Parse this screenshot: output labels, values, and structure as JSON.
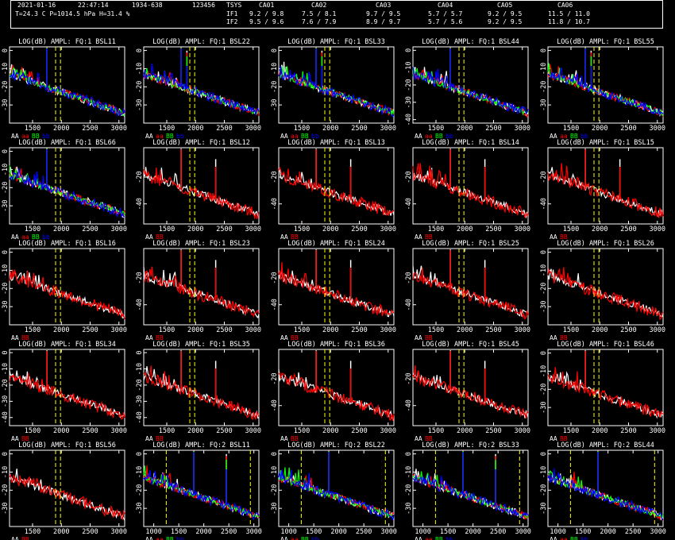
{
  "header": {
    "date": "2021-01-16",
    "time": "22:47:14",
    "range": "1934-638",
    "id": "123456",
    "tsys_label": "TSYS",
    "env": "T=24.3 C P=1014.5 hPa H=31.4 %",
    "if1_label": "IF1",
    "if2_label": "IF2",
    "antennas": [
      "CA01",
      "CA02",
      "CA03",
      "CA04",
      "CA05",
      "CA06"
    ],
    "if1": [
      "9.2 / 9.8",
      "7.5 / 8.1",
      "9.7 / 9.5",
      "5.7 / 5.7",
      "9.2 / 9.5",
      "11.5 / 11.0"
    ],
    "if2": [
      "9.5 / 9.6",
      "7.6 / 7.9",
      "8.9 / 9.7",
      "5.7 / 5.6",
      "9.2 / 9.5",
      "11.8 / 10.7"
    ]
  },
  "colors": {
    "AA": "#ffffff",
    "aa": "#ff0000",
    "BB": "#00ff00",
    "bb": "#0000ff",
    "BB_single": "#ff0000",
    "marker": "#ffff00"
  },
  "chart_data": [
    {
      "type": "line",
      "title": "LOG(dB) AMPL: FQ:1 BSL11",
      "x_ticks": [
        1500,
        2000,
        2500,
        3000
      ],
      "y_ticks": [
        0,
        -10,
        -20,
        -30
      ],
      "ylim": [
        -40,
        2
      ],
      "xlim": [
        1100,
        3100
      ],
      "legend": [
        "AA",
        "aa",
        "BB",
        "bb"
      ],
      "markers": [
        1900,
        1985
      ],
      "spikes": [
        1750
      ]
    },
    {
      "type": "line",
      "title": "LOG(dB) AMPL: FQ:1 BSL22",
      "x_ticks": [
        1500,
        2000,
        2500,
        3000
      ],
      "y_ticks": [
        0,
        -10,
        -20,
        -30
      ],
      "ylim": [
        -40,
        2
      ],
      "xlim": [
        1100,
        3100
      ],
      "legend": [
        "AA",
        "aa",
        "BB",
        "bb"
      ],
      "markers": [
        1900,
        1985
      ],
      "spikes": [
        1750,
        1850
      ]
    },
    {
      "type": "line",
      "title": "LOG(dB) AMPL: FQ:1 BSL33",
      "x_ticks": [
        1500,
        2000,
        2500,
        3000
      ],
      "y_ticks": [
        0,
        -10,
        -20,
        -30
      ],
      "ylim": [
        -40,
        2
      ],
      "xlim": [
        1100,
        3100
      ],
      "legend": [
        "AA",
        "aa",
        "BB",
        "bb"
      ],
      "markers": [
        1900,
        1985
      ],
      "spikes": [
        1750,
        1850
      ]
    },
    {
      "type": "line",
      "title": "LOG(dB) AMPL: FQ:1 BSL44",
      "x_ticks": [
        1500,
        2000,
        2500,
        3000
      ],
      "y_ticks": [
        0,
        -10,
        -20,
        -30,
        -40
      ],
      "ylim": [
        -42,
        2
      ],
      "xlim": [
        1100,
        3100
      ],
      "legend": [
        "AA",
        "aa",
        "BB",
        "bb"
      ],
      "markers": [
        1900,
        1985
      ],
      "spikes": [
        1750
      ]
    },
    {
      "type": "line",
      "title": "LOG(dB) AMPL: FQ:1 BSL55",
      "x_ticks": [
        1500,
        2000,
        2500,
        3000
      ],
      "y_ticks": [
        0,
        -10,
        -20,
        -30
      ],
      "ylim": [
        -40,
        2
      ],
      "xlim": [
        1100,
        3100
      ],
      "legend": [
        "AA",
        "aa",
        "BB",
        "bb"
      ],
      "markers": [
        1900,
        1985
      ],
      "spikes": [
        1750,
        1850
      ]
    },
    {
      "type": "line",
      "title": "LOG(dB) AMPL: FQ:1 BSL66",
      "x_ticks": [
        1500,
        2000,
        2500,
        3000
      ],
      "y_ticks": [
        0,
        -10,
        -20,
        -30
      ],
      "ylim": [
        -40,
        2
      ],
      "xlim": [
        1100,
        3100
      ],
      "legend": [
        "AA",
        "aa",
        "BB",
        "bb"
      ],
      "markers": [
        1900,
        1985
      ],
      "spikes": [
        1750
      ]
    },
    {
      "type": "line",
      "title": "LOG(dB) AMPL: FQ:1 BSL12",
      "x_ticks": [
        1500,
        2000,
        2500,
        3000
      ],
      "y_ticks": [
        -20,
        -40
      ],
      "ylim": [
        -55,
        2
      ],
      "xlim": [
        1100,
        3100
      ],
      "legend": [
        "AA",
        "BB"
      ],
      "markers": [
        1900,
        1985
      ],
      "spikes": [
        1750,
        2350
      ]
    },
    {
      "type": "line",
      "title": "LOG(dB) AMPL: FQ:1 BSL13",
      "x_ticks": [
        1500,
        2000,
        2500,
        3000
      ],
      "y_ticks": [
        -20,
        -40
      ],
      "ylim": [
        -55,
        2
      ],
      "xlim": [
        1100,
        3100
      ],
      "legend": [
        "AA",
        "BB"
      ],
      "markers": [
        1900,
        1985
      ],
      "spikes": [
        1750,
        2350
      ]
    },
    {
      "type": "line",
      "title": "LOG(dB) AMPL: FQ:1 BSL14",
      "x_ticks": [
        1500,
        2000,
        2500,
        3000
      ],
      "y_ticks": [
        -20,
        -40
      ],
      "ylim": [
        -55,
        2
      ],
      "xlim": [
        1100,
        3100
      ],
      "legend": [
        "AA",
        "BB"
      ],
      "markers": [
        1900,
        1985
      ],
      "spikes": [
        1750,
        2350
      ]
    },
    {
      "type": "line",
      "title": "LOG(dB) AMPL: FQ:1 BSL15",
      "x_ticks": [
        1500,
        2000,
        2500,
        3000
      ],
      "y_ticks": [
        -20,
        -40
      ],
      "ylim": [
        -55,
        2
      ],
      "xlim": [
        1100,
        3100
      ],
      "legend": [
        "AA",
        "BB"
      ],
      "markers": [
        1900,
        1985
      ],
      "spikes": [
        1750,
        2350
      ]
    },
    {
      "type": "line",
      "title": "LOG(dB) AMPL: FQ:1 BSL16",
      "x_ticks": [
        1500,
        2000,
        2500,
        3000
      ],
      "y_ticks": [
        0,
        -10,
        -20,
        -30
      ],
      "ylim": [
        -40,
        2
      ],
      "xlim": [
        1100,
        3100
      ],
      "legend": [
        "AA",
        "BB"
      ],
      "markers": [
        1900,
        1985
      ],
      "spikes": []
    },
    {
      "type": "line",
      "title": "LOG(dB) AMPL: FQ:1 BSL23",
      "x_ticks": [
        1500,
        2000,
        2500,
        3000
      ],
      "y_ticks": [
        -20,
        -40
      ],
      "ylim": [
        -55,
        2
      ],
      "xlim": [
        1100,
        3100
      ],
      "legend": [
        "AA",
        "BB"
      ],
      "markers": [
        1900,
        1985
      ],
      "spikes": [
        1750,
        2350
      ]
    },
    {
      "type": "line",
      "title": "LOG(dB) AMPL: FQ:1 BSL24",
      "x_ticks": [
        1500,
        2000,
        2500,
        3000
      ],
      "y_ticks": [
        -20,
        -40
      ],
      "ylim": [
        -55,
        2
      ],
      "xlim": [
        1100,
        3100
      ],
      "legend": [
        "AA",
        "BB"
      ],
      "markers": [
        1900,
        1985
      ],
      "spikes": [
        1750,
        2350
      ]
    },
    {
      "type": "line",
      "title": "LOG(dB) AMPL: FQ:1 BSL25",
      "x_ticks": [
        1500,
        2000,
        2500,
        3000
      ],
      "y_ticks": [
        -20,
        -40
      ],
      "ylim": [
        -55,
        2
      ],
      "xlim": [
        1100,
        3100
      ],
      "legend": [
        "AA",
        "BB"
      ],
      "markers": [
        1900,
        1985
      ],
      "spikes": [
        1750,
        2350
      ]
    },
    {
      "type": "line",
      "title": "LOG(dB) AMPL: FQ:1 BSL26",
      "x_ticks": [
        1500,
        2000,
        2500,
        3000
      ],
      "y_ticks": [
        0,
        -10,
        -20,
        -30
      ],
      "ylim": [
        -40,
        2
      ],
      "xlim": [
        1100,
        3100
      ],
      "legend": [
        "AA",
        "BB"
      ],
      "markers": [
        1900,
        1985
      ],
      "spikes": []
    },
    {
      "type": "line",
      "title": "LOG(dB) AMPL: FQ:1 BSL34",
      "x_ticks": [
        1500,
        2000,
        2500,
        3000
      ],
      "y_ticks": [
        0,
        -10,
        -20,
        -30,
        -40
      ],
      "ylim": [
        -45,
        2
      ],
      "xlim": [
        1100,
        3100
      ],
      "legend": [
        "AA",
        "BB"
      ],
      "markers": [
        1900,
        1985
      ],
      "spikes": [
        1750
      ]
    },
    {
      "type": "line",
      "title": "LOG(dB) AMPL: FQ:1 BSL35",
      "x_ticks": [
        1500,
        2000,
        2500,
        3000
      ],
      "y_ticks": [
        0,
        -10,
        -20,
        -30,
        -40
      ],
      "ylim": [
        -45,
        2
      ],
      "xlim": [
        1100,
        3100
      ],
      "legend": [
        "AA",
        "BB"
      ],
      "markers": [
        1900,
        1985
      ],
      "spikes": [
        1750,
        2350
      ]
    },
    {
      "type": "line",
      "title": "LOG(dB) AMPL: FQ:1 BSL36",
      "x_ticks": [
        1500,
        2000,
        2500,
        3000
      ],
      "y_ticks": [
        -20,
        -40
      ],
      "ylim": [
        -55,
        2
      ],
      "xlim": [
        1100,
        3100
      ],
      "legend": [
        "AA",
        "BB"
      ],
      "markers": [
        1900,
        1985
      ],
      "spikes": [
        1750,
        2350
      ]
    },
    {
      "type": "line",
      "title": "LOG(dB) AMPL: FQ:1 BSL45",
      "x_ticks": [
        1500,
        2000,
        2500,
        3000
      ],
      "y_ticks": [
        -20,
        -40
      ],
      "ylim": [
        -55,
        2
      ],
      "xlim": [
        1100,
        3100
      ],
      "legend": [
        "AA",
        "BB"
      ],
      "markers": [
        1900,
        1985
      ],
      "spikes": [
        1750,
        2350
      ]
    },
    {
      "type": "line",
      "title": "LOG(dB) AMPL: FQ:1 BSL46",
      "x_ticks": [
        1500,
        2000,
        2500,
        3000
      ],
      "y_ticks": [
        0,
        -10,
        -20,
        -30
      ],
      "ylim": [
        -40,
        2
      ],
      "xlim": [
        1100,
        3100
      ],
      "legend": [
        "AA",
        "BB"
      ],
      "markers": [
        1900,
        1985
      ],
      "spikes": [
        1750
      ]
    },
    {
      "type": "line",
      "title": "LOG(dB) AMPL: FQ:1 BSL56",
      "x_ticks": [
        1500,
        2000,
        2500,
        3000
      ],
      "y_ticks": [
        0,
        -10,
        -20,
        -30
      ],
      "ylim": [
        -40,
        2
      ],
      "xlim": [
        1100,
        3100
      ],
      "legend": [
        "AA",
        "BB"
      ],
      "markers": [
        1900,
        1985
      ],
      "spikes": []
    },
    {
      "type": "line",
      "title": "LOG(dB) AMPL: FQ:2 BSL11",
      "x_ticks": [
        1000,
        1500,
        2000,
        2500,
        3000
      ],
      "y_ticks": [
        0,
        -10,
        -20,
        -30
      ],
      "ylim": [
        -40,
        2
      ],
      "xlim": [
        800,
        3100
      ],
      "legend": [
        "AA",
        "aa",
        "BB",
        "bb"
      ],
      "markers": [
        1250,
        2930
      ],
      "spikes": [
        1800,
        2450
      ]
    },
    {
      "type": "line",
      "title": "LOG(dB) AMPL: FQ:2 BSL22",
      "x_ticks": [
        1000,
        1500,
        2000,
        2500,
        3000
      ],
      "y_ticks": [
        0,
        -10,
        -20,
        -30
      ],
      "ylim": [
        -40,
        2
      ],
      "xlim": [
        800,
        3100
      ],
      "legend": [
        "AA",
        "aa",
        "BB",
        "bb"
      ],
      "markers": [
        1250,
        2930
      ],
      "spikes": [
        1800
      ]
    },
    {
      "type": "line",
      "title": "LOG(dB) AMPL: FQ:2 BSL33",
      "x_ticks": [
        1000,
        1500,
        2000,
        2500,
        3000
      ],
      "y_ticks": [
        0,
        -10,
        -20,
        -30
      ],
      "ylim": [
        -40,
        2
      ],
      "xlim": [
        800,
        3100
      ],
      "legend": [
        "AA",
        "aa",
        "BB",
        "bb"
      ],
      "markers": [
        1250,
        2930
      ],
      "spikes": [
        1800,
        2450
      ]
    },
    {
      "type": "line",
      "title": "LOG(dB) AMPL: FQ:2 BSL44",
      "x_ticks": [
        1000,
        1500,
        2000,
        2500,
        3000
      ],
      "y_ticks": [
        0,
        -10,
        -20,
        -30
      ],
      "ylim": [
        -40,
        2
      ],
      "xlim": [
        800,
        3100
      ],
      "legend": [
        "AA",
        "aa",
        "BB",
        "bb"
      ],
      "markers": [
        1250,
        2930
      ],
      "spikes": [
        1800
      ]
    }
  ]
}
